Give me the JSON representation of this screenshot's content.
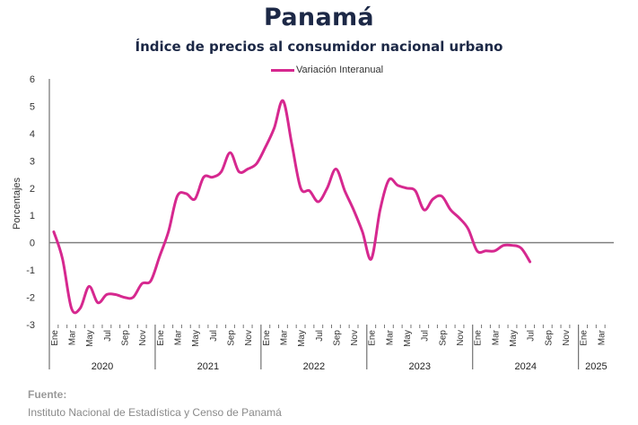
{
  "title": "Panamá",
  "subtitle": "Índice de precios al consumidor nacional urbano",
  "source": {
    "label": "Fuente:",
    "text": "Instituto Nacional de Estadística y Censo de Panamá"
  },
  "chart_data": {
    "type": "line",
    "ylabel": "Porcentajes",
    "ylim": [
      -3,
      6
    ],
    "yticks": [
      -3,
      -2,
      -1,
      0,
      1,
      2,
      3,
      4,
      5,
      6
    ],
    "grid": false,
    "legend_position": "top-center",
    "line_color": "#d6288f",
    "zero_line_color": "#808080",
    "years": [
      {
        "label": "2020",
        "months": 12
      },
      {
        "label": "2021",
        "months": 12
      },
      {
        "label": "2022",
        "months": 12
      },
      {
        "label": "2023",
        "months": 12
      },
      {
        "label": "2024",
        "months": 12
      },
      {
        "label": "2025",
        "months": 4
      }
    ],
    "month_labels": [
      "Ene",
      "",
      "Mar",
      "",
      "May",
      "",
      "Jul",
      "",
      "Sep",
      "",
      "Nov",
      ""
    ],
    "series": [
      {
        "name": "Variación Interanual",
        "values": [
          0.4,
          -0.6,
          -2.4,
          -2.4,
          -1.6,
          -2.2,
          -1.9,
          -1.9,
          -2.0,
          -2.0,
          -1.5,
          -1.4,
          -0.5,
          0.4,
          1.7,
          1.8,
          1.6,
          2.4,
          2.4,
          2.6,
          3.3,
          2.6,
          2.7,
          2.9,
          3.5,
          4.2,
          5.2,
          3.6,
          2.0,
          1.9,
          1.5,
          2.0,
          2.7,
          1.9,
          1.2,
          0.4,
          -0.6,
          1.2,
          2.3,
          2.1,
          2.0,
          1.9,
          1.2,
          1.6,
          1.7,
          1.2,
          0.9,
          0.5,
          -0.3,
          -0.3,
          -0.3,
          -0.1,
          -0.1,
          -0.2,
          -0.7
        ]
      }
    ]
  }
}
